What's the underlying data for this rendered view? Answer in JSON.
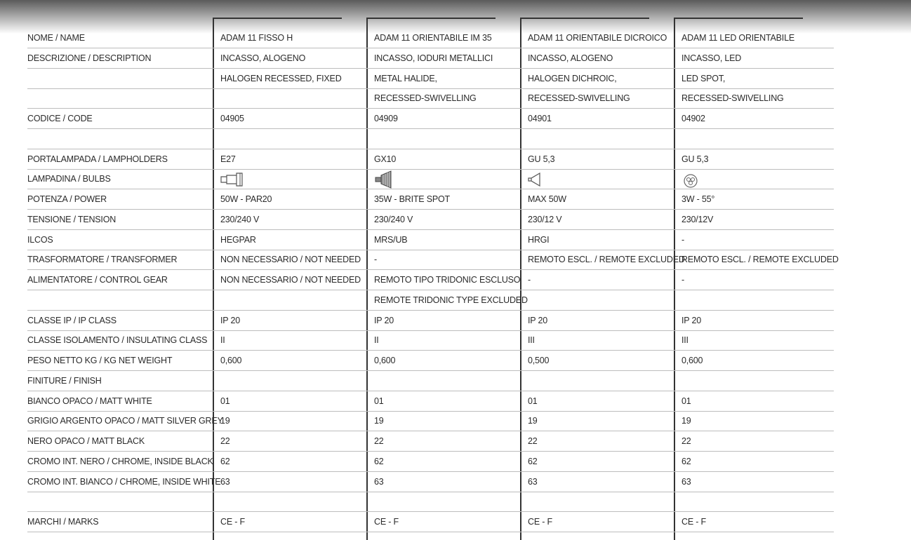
{
  "table": {
    "rows": [
      [
        "NOME / NAME",
        "ADAM 11 FISSO H",
        "ADAM 11 ORIENTABILE IM 35",
        "ADAM 11 ORIENTABILE DICROICO",
        "ADAM 11 LED ORIENTABILE"
      ],
      [
        "DESCRIZIONE / DESCRIPTION",
        "INCASSO, ALOGENO",
        "INCASSO, IODURI METALLICI",
        "INCASSO, ALOGENO",
        "INCASSO, LED"
      ],
      [
        null,
        "HALOGEN RECESSED, FIXED",
        "METAL HALIDE,",
        "HALOGEN DICHROIC,",
        "LED SPOT,"
      ],
      [
        null,
        null,
        "RECESSED-SWIVELLING",
        "RECESSED-SWIVELLING",
        "RECESSED-SWIVELLING"
      ],
      [
        "CODICE / CODE",
        "04905",
        "04909",
        "04901",
        "04902"
      ],
      [
        null,
        null,
        null,
        null,
        null
      ],
      [
        "PORTALAMPADA / LAMPHOLDERS",
        "E27",
        "GX10",
        "GU 5,3",
        "GU 5,3"
      ],
      [
        "LAMPADINA / BULBS",
        null,
        null,
        null,
        null
      ],
      [
        "POTENZA / POWER",
        "50W - PAR20",
        "35W - BRITE SPOT",
        "MAX 50W",
        "3W - 55°"
      ],
      [
        "TENSIONE / TENSION",
        "230/240 V",
        "230/240 V",
        "230/12 V",
        "230/12V"
      ],
      [
        "ILCOS",
        "HEGPAR",
        "MRS/UB",
        "HRGI",
        "-"
      ],
      [
        "TRASFORMATORE / TRANSFORMER",
        "NON NECESSARIO / NOT NEEDED",
        "-",
        "REMOTO ESCL. / REMOTE EXCLUDED",
        "REMOTO ESCL. / REMOTE EXCLUDED"
      ],
      [
        "ALIMENTATORE / CONTROL GEAR",
        "NON NECESSARIO / NOT NEEDED",
        "REMOTO TIPO TRIDONIC ESCLUSO",
        "-",
        "-"
      ],
      [
        null,
        null,
        "REMOTE TRIDONIC TYPE EXCLUDED",
        null,
        null
      ],
      [
        "CLASSE IP / IP CLASS",
        "IP 20",
        "IP 20",
        "IP 20",
        "IP 20"
      ],
      [
        "CLASSE ISOLAMENTO / INSULATING CLASS",
        "II",
        "II",
        "III",
        "III"
      ],
      [
        "PESO NETTO KG / KG NET WEIGHT",
        "0,600",
        "0,600",
        "0,500",
        "0,600"
      ],
      [
        "FINITURE / FINISH",
        null,
        null,
        null,
        null
      ],
      [
        "BIANCO OPACO / MATT WHITE",
        "01",
        "01",
        "01",
        "01"
      ],
      [
        "GRIGIO ARGENTO OPACO / MATT SILVER GREY",
        "19",
        "19",
        "19",
        "19"
      ],
      [
        "NERO OPACO / MATT BLACK",
        "22",
        "22",
        "22",
        "22"
      ],
      [
        "CROMO INT. NERO / CHROME, INSIDE BLACK",
        "62",
        "62",
        "62",
        "62"
      ],
      [
        "CROMO INT. BIANCO / CHROME, INSIDE WHITE",
        "63",
        "63",
        "63",
        "63"
      ],
      [
        null,
        null,
        null,
        null,
        null
      ],
      [
        "MARCHI / MARKS",
        "CE - F",
        "CE - F",
        "CE - F",
        "CE - F"
      ]
    ]
  }
}
